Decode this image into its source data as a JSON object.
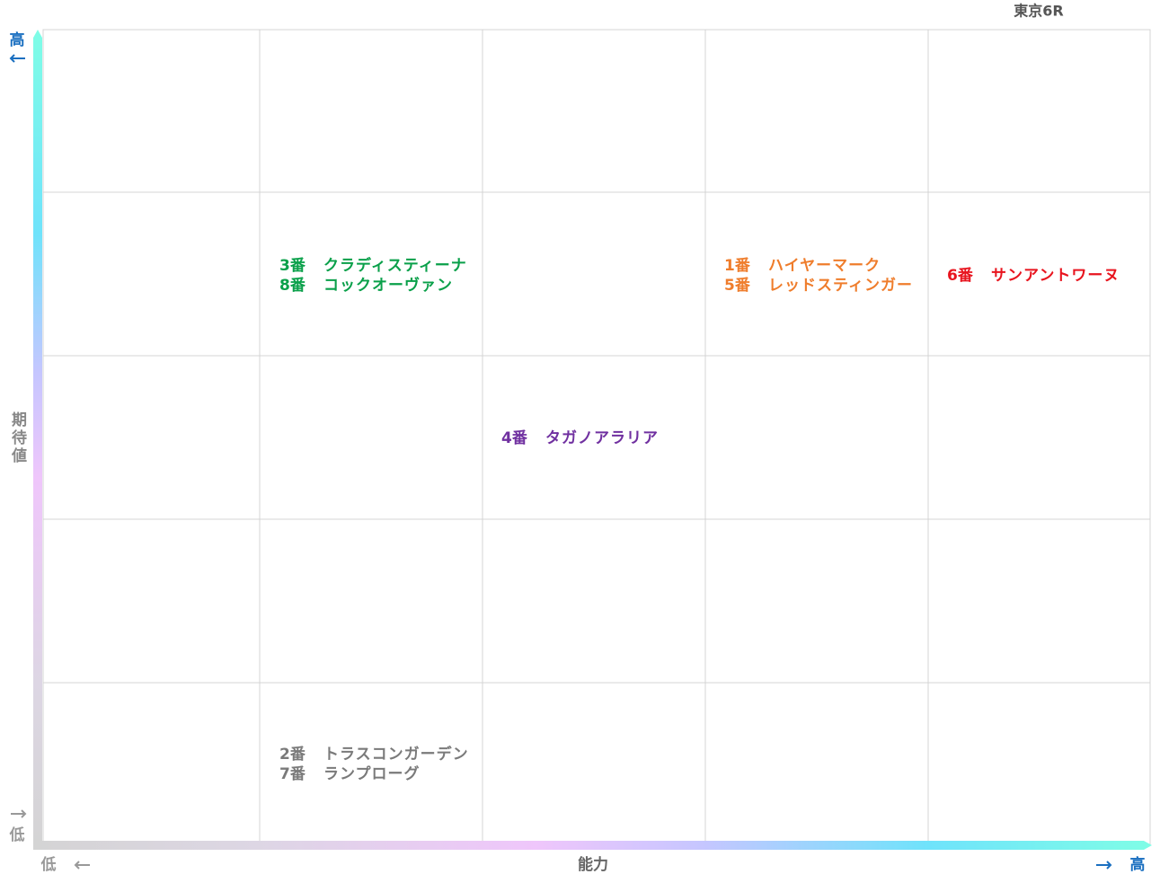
{
  "title": "東京6R",
  "y_axis": {
    "label": "期待値",
    "high": "高",
    "low": "低"
  },
  "x_axis": {
    "label": "能力",
    "high": "高",
    "low": "低"
  },
  "groups": [
    {
      "color": "#0aa04a",
      "lines": [
        {
          "number": "3番",
          "name": "クラディスティーナ"
        },
        {
          "number": "8番",
          "name": "コックオーヴァン"
        }
      ]
    },
    {
      "color": "#ef7d2c",
      "lines": [
        {
          "number": "1番",
          "name": "ハイヤーマーク"
        },
        {
          "number": "5番",
          "name": "レッドスティンガー"
        }
      ]
    },
    {
      "color": "#e8141e",
      "lines": [
        {
          "number": "6番",
          "name": "サンアントワーヌ"
        }
      ]
    },
    {
      "color": "#7030a0",
      "lines": [
        {
          "number": "4番",
          "name": "タガノアラリア"
        }
      ]
    },
    {
      "color": "#7a7a7a",
      "lines": [
        {
          "number": "2番",
          "name": "トラスコンガーデン"
        },
        {
          "number": "7番",
          "name": "ランプローグ"
        }
      ]
    }
  ]
}
